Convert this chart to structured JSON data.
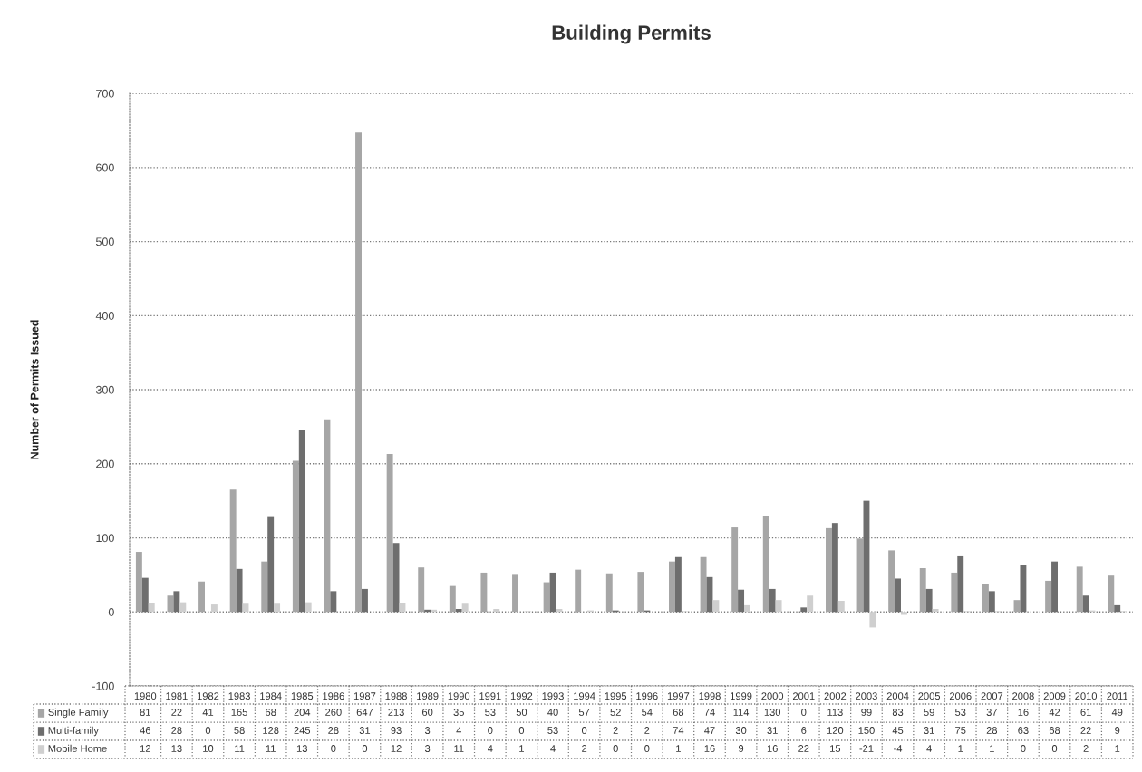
{
  "chart_data": {
    "type": "bar",
    "title": "Building Permits",
    "ylabel": "Number of Permits Issued",
    "categories": [
      "1980",
      "1981",
      "1982",
      "1983",
      "1984",
      "1985",
      "1986",
      "1987",
      "1988",
      "1989",
      "1990",
      "1991",
      "1992",
      "1993",
      "1994",
      "1995",
      "1996",
      "1997",
      "1998",
      "1999",
      "2000",
      "2001",
      "2002",
      "2003",
      "2004",
      "2005",
      "2006",
      "2007",
      "2008",
      "2009",
      "2010",
      "2011"
    ],
    "series": [
      {
        "name": "Single Family",
        "color": "#a6a6a6",
        "values": [
          81,
          22,
          41,
          165,
          68,
          204,
          260,
          647,
          213,
          60,
          35,
          53,
          50,
          40,
          57,
          52,
          54,
          68,
          74,
          114,
          130,
          0,
          113,
          99,
          83,
          59,
          53,
          37,
          16,
          42,
          61,
          49
        ]
      },
      {
        "name": "Multi-family",
        "color": "#6e6e6e",
        "values": [
          46,
          28,
          0,
          58,
          128,
          245,
          28,
          31,
          93,
          3,
          4,
          0,
          0,
          53,
          0,
          2,
          2,
          74,
          47,
          30,
          31,
          6,
          120,
          150,
          45,
          31,
          75,
          28,
          63,
          68,
          22,
          9
        ]
      },
      {
        "name": "Mobile Home",
        "color": "#cfcfcf",
        "values": [
          12,
          13,
          10,
          11,
          11,
          13,
          0,
          0,
          12,
          3,
          11,
          4,
          1,
          4,
          2,
          0,
          0,
          1,
          16,
          9,
          16,
          22,
          15,
          -21,
          -4,
          4,
          1,
          1,
          0,
          0,
          2,
          1
        ]
      }
    ],
    "ylim": [
      -100,
      700
    ],
    "yticks": [
      -100,
      0,
      100,
      200,
      300,
      400,
      500,
      600,
      700
    ],
    "grid": "y",
    "legend": "bottom left",
    "data_labels": true
  }
}
